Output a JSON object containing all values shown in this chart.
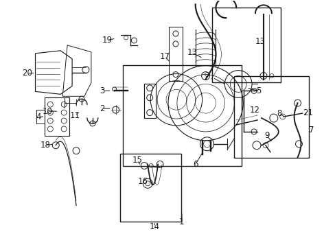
{
  "bg_color": "#ffffff",
  "line_color": "#1a1a1a",
  "fig_width": 4.89,
  "fig_height": 3.6,
  "dpi": 100,
  "lw": 0.7,
  "font_size": 8.5
}
